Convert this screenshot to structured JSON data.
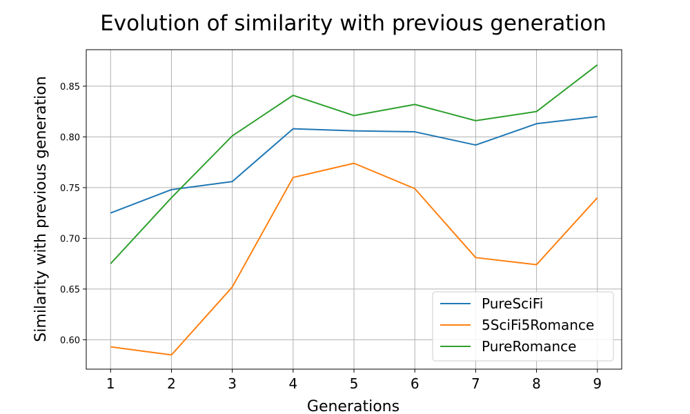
{
  "chart_data": {
    "type": "line",
    "title": "Evolution of similarity with previous generation",
    "xlabel": "Generations",
    "ylabel": "Similarity with previous generation",
    "x": [
      1,
      2,
      3,
      4,
      5,
      6,
      7,
      8,
      9
    ],
    "xticks": [
      "1",
      "2",
      "3",
      "4",
      "5",
      "6",
      "7",
      "8",
      "9"
    ],
    "yticks": [
      0.6,
      0.65,
      0.7,
      0.75,
      0.8,
      0.85
    ],
    "ytick_labels": [
      "0.60",
      "0.65",
      "0.70",
      "0.75",
      "0.80",
      "0.85"
    ],
    "xlim": [
      0.6,
      9.4
    ],
    "ylim": [
      0.571,
      0.886
    ],
    "grid": true,
    "legend_position": "bottom-right",
    "series": [
      {
        "name": "PureSciFi",
        "color": "#1f77b4",
        "values": [
          0.725,
          0.748,
          0.756,
          0.808,
          0.806,
          0.805,
          0.792,
          0.813,
          0.82
        ]
      },
      {
        "name": "5SciFi5Romance",
        "color": "#ff7f0e",
        "values": [
          0.593,
          0.585,
          0.652,
          0.76,
          0.774,
          0.749,
          0.681,
          0.674,
          0.74
        ]
      },
      {
        "name": "PureRomance",
        "color": "#2ca02c",
        "values": [
          0.675,
          0.74,
          0.801,
          0.841,
          0.821,
          0.832,
          0.816,
          0.825,
          0.871
        ]
      }
    ]
  }
}
